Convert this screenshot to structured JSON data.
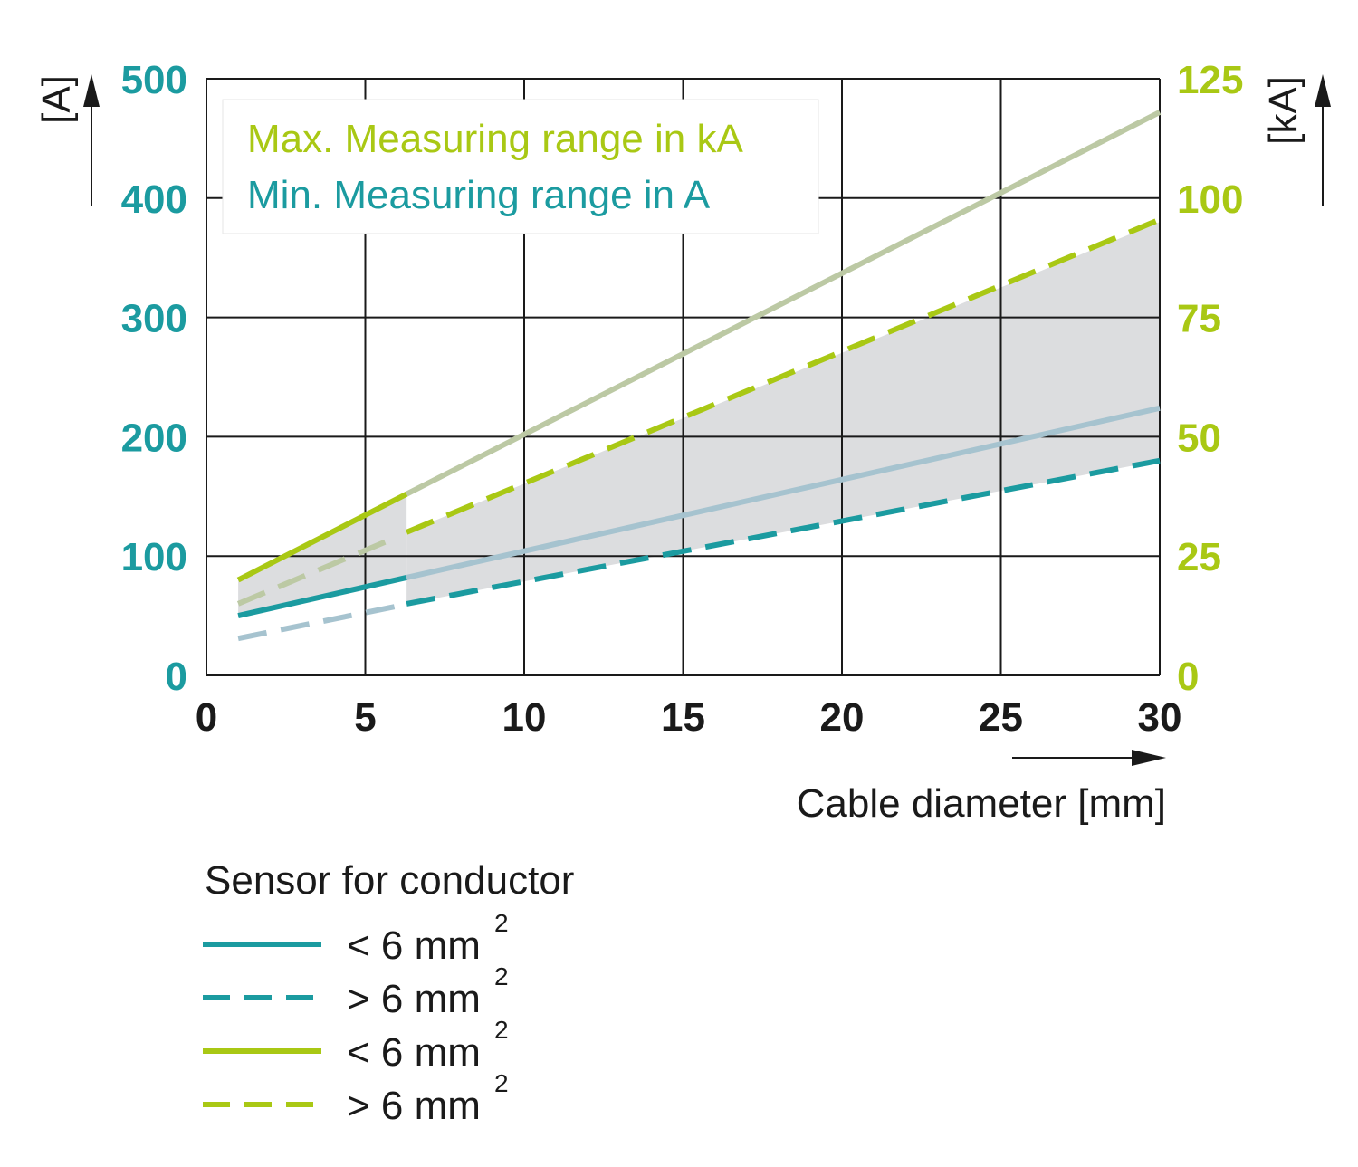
{
  "chart_data": {
    "type": "line",
    "xlabel": "Cable diameter [mm]",
    "ylabel_left": "[A]",
    "ylabel_right": "[kA]",
    "xlim": [
      0,
      30
    ],
    "ylim_left": [
      0,
      500
    ],
    "ylim_right": [
      0,
      125
    ],
    "x_ticks": [
      "0",
      "5",
      "10",
      "15",
      "20",
      "25",
      "30"
    ],
    "y_left_ticks": [
      "0",
      "100",
      "200",
      "300",
      "400",
      "500"
    ],
    "y_right_ticks": [
      "0",
      "25",
      "50",
      "75",
      "100",
      "125"
    ],
    "grid": true,
    "range_legend": {
      "max_label": "Max. Measuring range in kA",
      "min_label": "Min. Measuring range in A"
    },
    "legend_title": "Sensor for conductor",
    "legend": [
      {
        "label": "< 6 mm",
        "sup": "2",
        "color": "#1b9ba0",
        "dashed": false
      },
      {
        "label": "> 6 mm",
        "sup": "2",
        "color": "#1b9ba0",
        "dashed": true
      },
      {
        "label": "< 6 mm",
        "sup": "2",
        "color": "#a9c814",
        "dashed": false
      },
      {
        "label": "> 6 mm",
        "sup": "2",
        "color": "#a9c814",
        "dashed": true
      }
    ],
    "series": [
      {
        "axis": "right",
        "color": "#a9c814",
        "dashed": false,
        "x": [
          1,
          6.3
        ],
        "values": [
          20,
          38
        ]
      },
      {
        "axis": "right",
        "color": "#bcc9a4",
        "dashed": false,
        "x": [
          6.3,
          30
        ],
        "values": [
          38,
          118
        ]
      },
      {
        "axis": "right",
        "color": "#bcc9a4",
        "dashed": true,
        "x": [
          1,
          6
        ],
        "values": [
          15,
          29
        ]
      },
      {
        "axis": "right",
        "color": "#a9c814",
        "dashed": true,
        "x": [
          6.3,
          30
        ],
        "values": [
          30,
          95.5
        ]
      },
      {
        "axis": "left",
        "color": "#1b9ba0",
        "dashed": false,
        "x": [
          1,
          6.3
        ],
        "values": [
          50,
          82
        ]
      },
      {
        "axis": "left",
        "color": "#a6c3cf",
        "dashed": false,
        "x": [
          6.3,
          30
        ],
        "values": [
          82,
          224
        ]
      },
      {
        "axis": "left",
        "color": "#a6c3cf",
        "dashed": true,
        "x": [
          1,
          6
        ],
        "values": [
          31,
          58
        ]
      },
      {
        "axis": "left",
        "color": "#1b9ba0",
        "dashed": true,
        "x": [
          6.3,
          30
        ],
        "values": [
          60,
          180
        ]
      }
    ],
    "shaded_regions": [
      {
        "x": [
          1,
          6.3
        ],
        "top_left_axis": [
          80,
          150
        ],
        "bottom_left_axis": [
          50,
          82
        ]
      },
      {
        "x": [
          6.3,
          30
        ],
        "top_left_axis": [
          120,
          380
        ],
        "bottom_left_axis": [
          60,
          180
        ]
      }
    ],
    "colors": {
      "teal": "#1b9ba0",
      "green": "#a9c814",
      "fill": "#dcdddf",
      "grid": "#1a1a1a"
    }
  }
}
